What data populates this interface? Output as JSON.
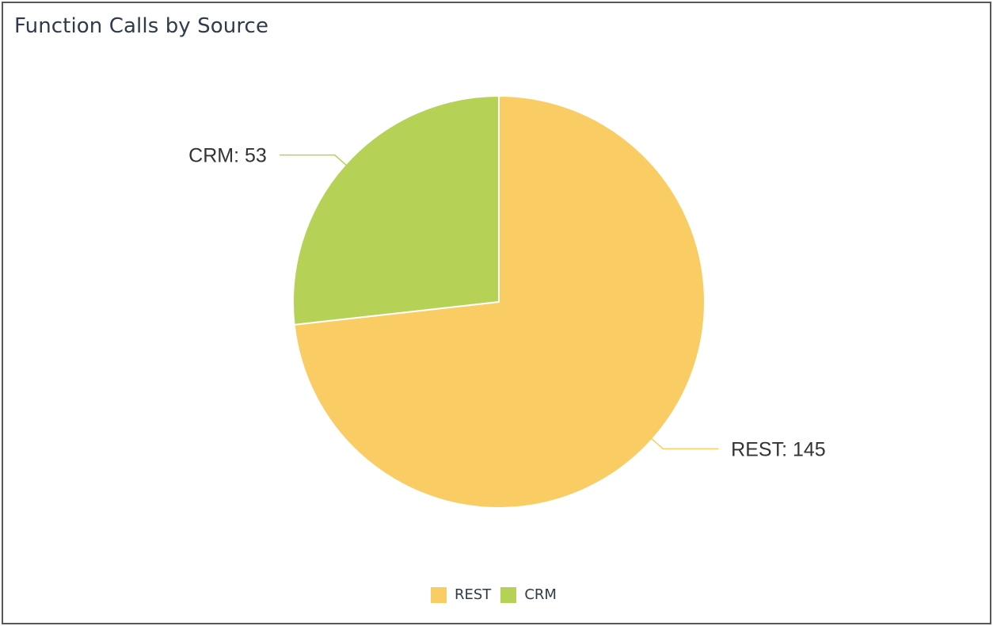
{
  "chart_data": {
    "type": "pie",
    "title": "Function Calls by Source",
    "slices": [
      {
        "label": "REST",
        "value": 145,
        "color": "#f9cd64",
        "data_label": "REST: 145"
      },
      {
        "label": "CRM",
        "value": 53,
        "color": "#b5d257",
        "data_label": "CRM: 53"
      }
    ],
    "start_angle_deg": 0,
    "legend_position": "bottom-center"
  },
  "legend": {
    "items": [
      {
        "label": "REST",
        "color": "#f9cd64"
      },
      {
        "label": "CRM",
        "color": "#b5d257"
      }
    ]
  }
}
